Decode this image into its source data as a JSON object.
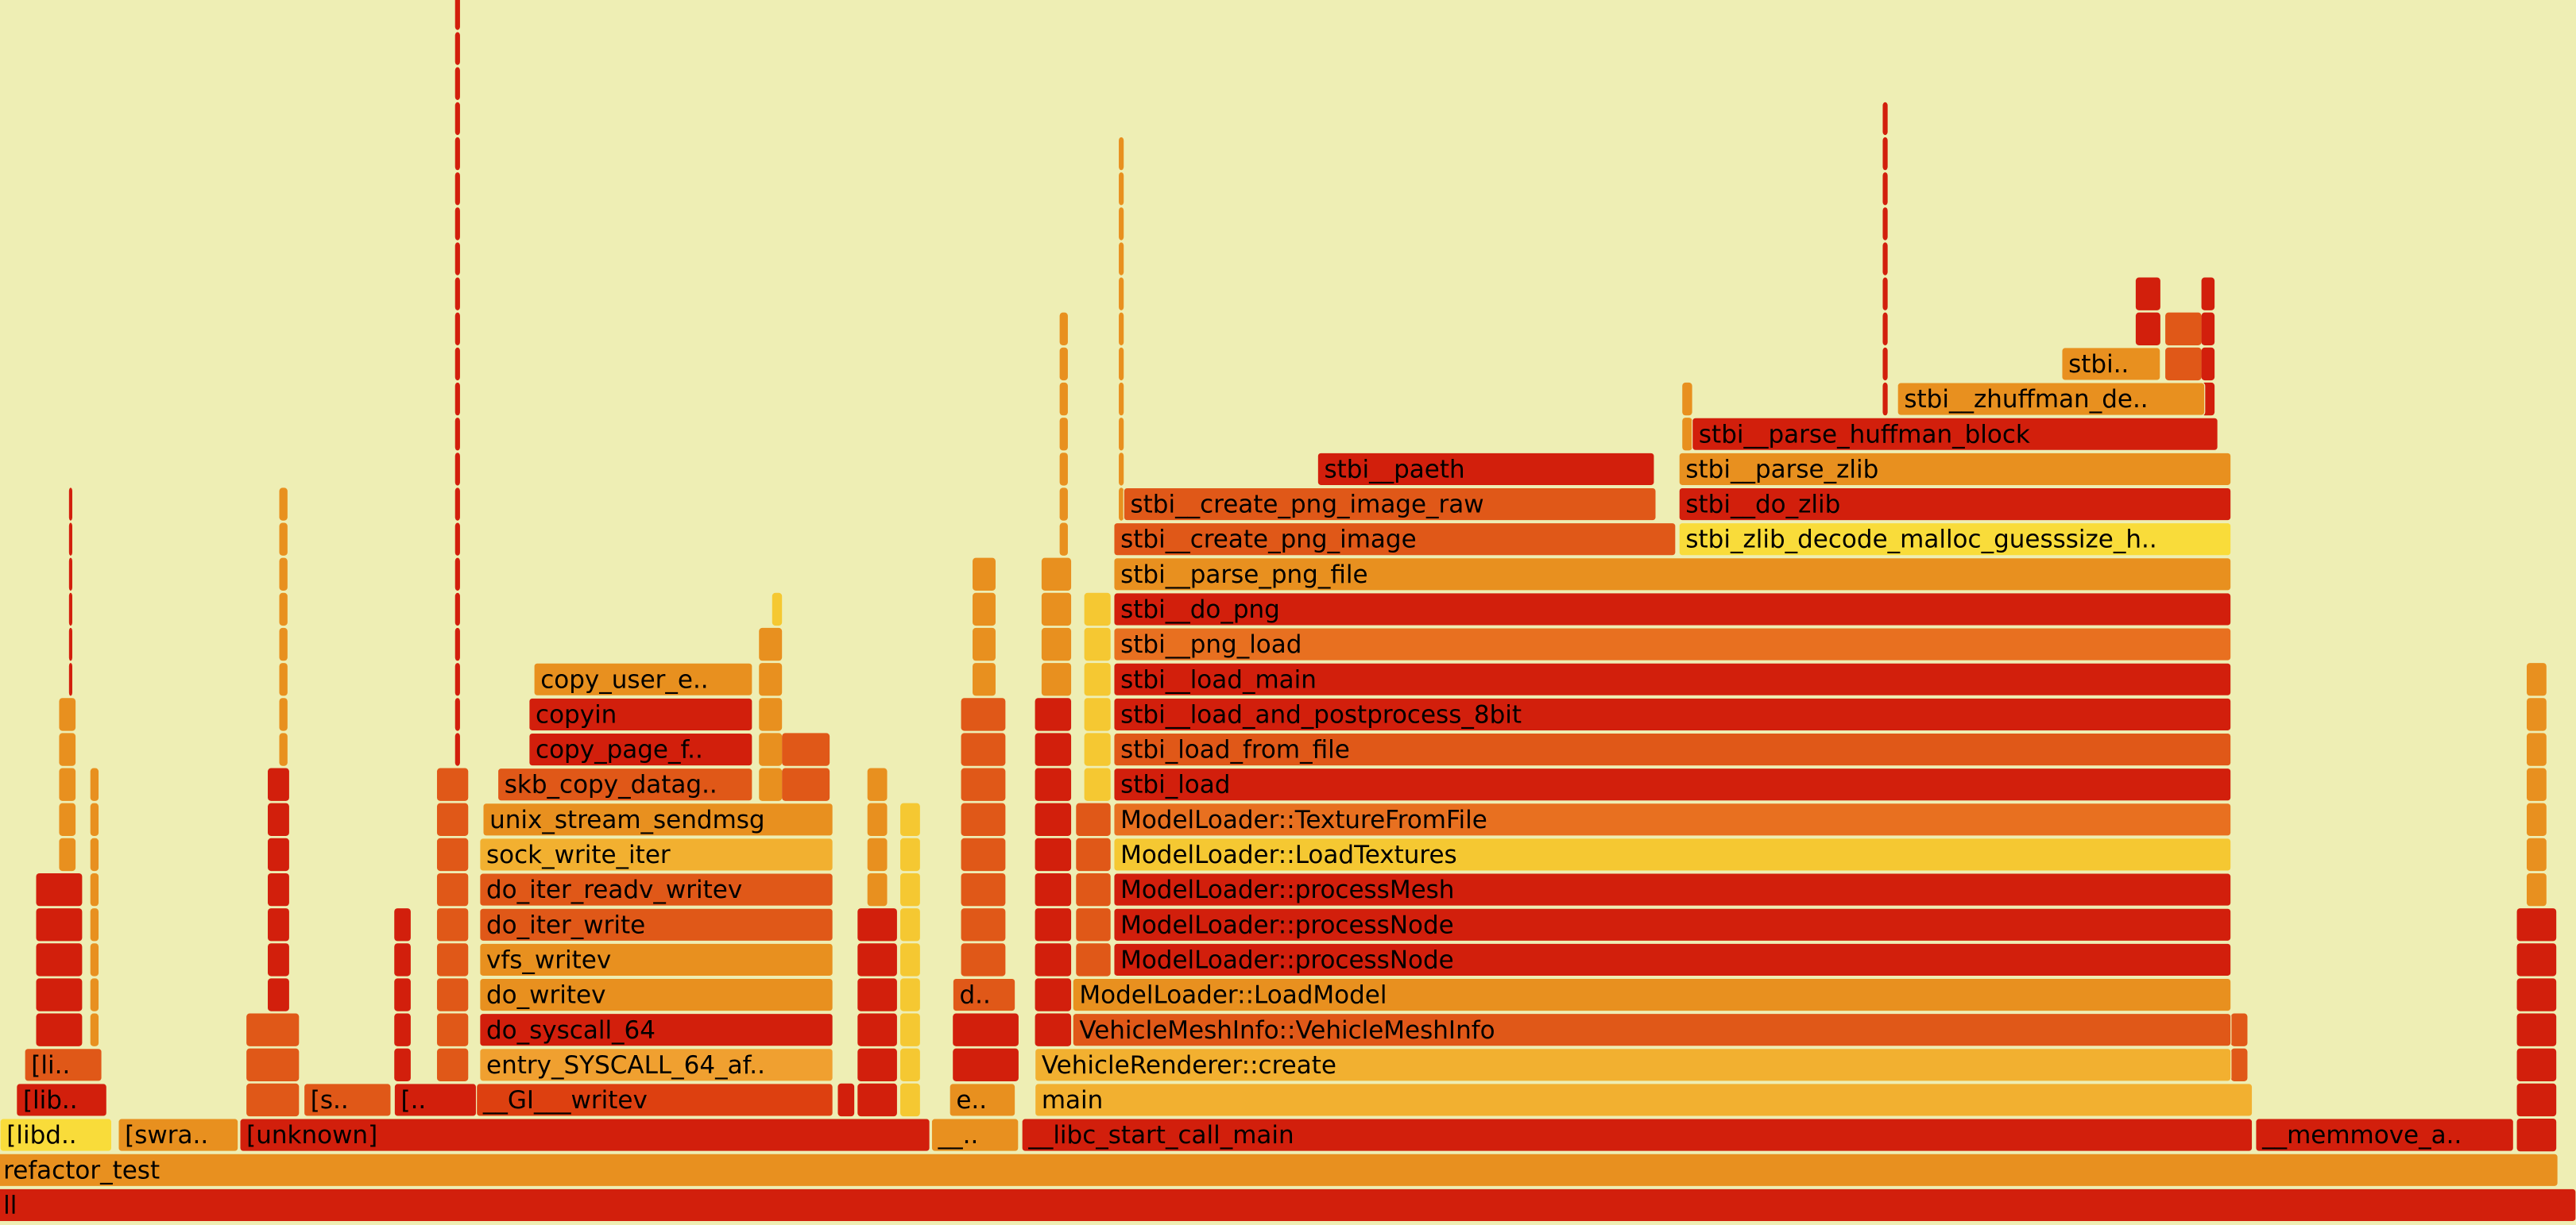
{
  "rows": [
    [
      "ll"
    ],
    [
      "refactor_test"
    ],
    [
      "[libd..",
      "[swra..",
      "[unknown]",
      "__..",
      "__libc_start_call_main",
      "__memmove_a.."
    ],
    [
      "[lib..",
      "[s..",
      "[..",
      "__GI___writev",
      "e..",
      "main"
    ],
    [
      "[li..",
      "entry_SYSCALL_64_af..",
      "VehicleRenderer::create"
    ],
    [
      "do_syscall_64",
      "VehicleMeshInfo::VehicleMeshInfo"
    ],
    [
      "do_writev",
      "d..",
      "ModelLoader::LoadModel"
    ],
    [
      "vfs_writev",
      "ModelLoader::processNode"
    ],
    [
      "do_iter_write",
      "ModelLoader::processNode"
    ],
    [
      "do_iter_readv_writev",
      "ModelLoader::processMesh"
    ],
    [
      "sock_write_iter",
      "ModelLoader::LoadTextures"
    ],
    [
      "unix_stream_sendmsg",
      "ModelLoader::TextureFromFile"
    ],
    [
      "skb_copy_datag..",
      "stbi_load"
    ],
    [
      "copy_page_f..",
      "stbi_load_from_file"
    ],
    [
      "copyin",
      "stbi__load_and_postprocess_8bit"
    ],
    [
      "copy_user_e..",
      "stbi__load_main"
    ],
    [
      "stbi__png_load"
    ],
    [
      "stbi__do_png"
    ],
    [
      "stbi__parse_png_file"
    ],
    [
      "stbi__create_png_image",
      "stbi_zlib_decode_malloc_guesssize_h.."
    ],
    [
      "stbi__create_png_image_raw",
      "stbi__do_zlib"
    ],
    [
      "stbi__paeth",
      "stbi__parse_zlib"
    ],
    [
      "stbi__parse_huffman_block"
    ],
    [
      "stbi__zhuffman_de.."
    ],
    [
      "stbi.."
    ]
  ]
}
